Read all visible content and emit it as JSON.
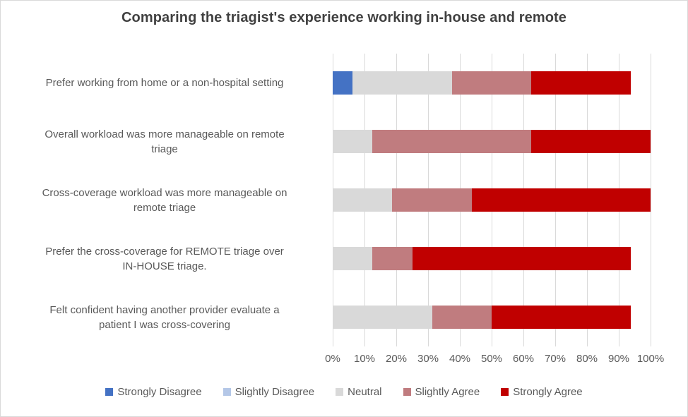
{
  "title": "Comparing the triagist's experience working in-house and remote",
  "chart_data": {
    "type": "bar",
    "orientation": "horizontal-stacked",
    "title": "Comparing the triagist's experience working in-house and remote",
    "categories": [
      "Prefer working from home or a non-hospital setting",
      "Overall workload was more manageable on remote\ntriage",
      "Cross-coverage workload was more manageable on\nremote triage",
      "Prefer the cross-coverage for REMOTE  triage over\nIN-HOUSE triage.",
      "Felt confident having another provider evaluate a\npatient I was cross-covering"
    ],
    "series": [
      {
        "name": "Strongly Disagree",
        "color": "#4472C4",
        "values": [
          6.25,
          0,
          0,
          0,
          0
        ]
      },
      {
        "name": "Slightly Disagree",
        "color": "#B4C7E7",
        "values": [
          0,
          0,
          0,
          0,
          0
        ]
      },
      {
        "name": "Neutral",
        "color": "#D9D9D9",
        "values": [
          31.25,
          12.5,
          18.75,
          12.5,
          31.25
        ]
      },
      {
        "name": "Slightly Agree",
        "color": "#C07C7F",
        "values": [
          25,
          50,
          25,
          12.5,
          18.75
        ]
      },
      {
        "name": "Strongly Agree",
        "color": "#C00000",
        "values": [
          31.25,
          37.5,
          56.25,
          68.75,
          43.75
        ]
      }
    ],
    "xlabel": "",
    "ylabel": "",
    "xlim": [
      0,
      100
    ],
    "xticks": [
      "0%",
      "10%",
      "20%",
      "30%",
      "40%",
      "50%",
      "60%",
      "70%",
      "80%",
      "90%",
      "100%"
    ],
    "grid": "vertical",
    "legend_position": "bottom"
  },
  "colors": {
    "title_text": "#404040",
    "label_text": "#595959",
    "gridline": "#D9D9D9",
    "background": "#FFFFFF",
    "border": "#D9D9D9"
  }
}
